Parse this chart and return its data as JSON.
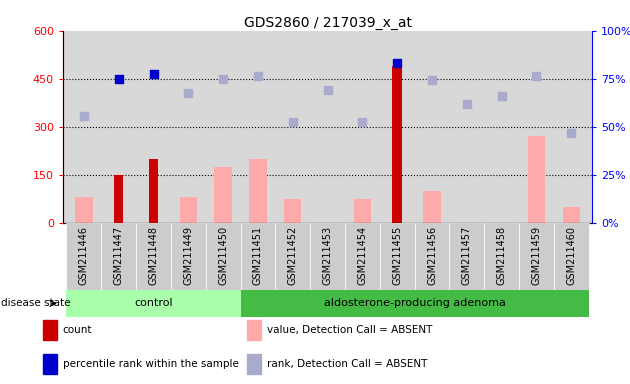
{
  "title": "GDS2860 / 217039_x_at",
  "samples": [
    "GSM211446",
    "GSM211447",
    "GSM211448",
    "GSM211449",
    "GSM211450",
    "GSM211451",
    "GSM211452",
    "GSM211453",
    "GSM211454",
    "GSM211455",
    "GSM211456",
    "GSM211457",
    "GSM211458",
    "GSM211459",
    "GSM211460"
  ],
  "n_control": 5,
  "n_adenoma": 10,
  "count": [
    null,
    150,
    200,
    null,
    null,
    null,
    null,
    null,
    null,
    490,
    null,
    null,
    null,
    null,
    null
  ],
  "percentile_rank_left": [
    null,
    450,
    465,
    null,
    null,
    null,
    null,
    null,
    null,
    500,
    null,
    null,
    null,
    null,
    null
  ],
  "value_absent": [
    80,
    null,
    null,
    80,
    175,
    200,
    75,
    null,
    75,
    null,
    100,
    null,
    null,
    270,
    50
  ],
  "rank_absent_left": [
    335,
    null,
    null,
    405,
    450,
    460,
    315,
    415,
    315,
    null,
    445,
    370,
    395,
    460,
    280
  ],
  "ylim_left": [
    0,
    600
  ],
  "ylim_right": [
    0,
    100
  ],
  "yticks_left": [
    0,
    150,
    300,
    450,
    600
  ],
  "yticks_right": [
    0,
    25,
    50,
    75,
    100
  ],
  "hlines": [
    150,
    300,
    450
  ],
  "bar_width": 0.5,
  "color_count": "#cc0000",
  "color_percentile": "#0000cc",
  "color_value_absent": "#ffaaaa",
  "color_rank_absent": "#aaaacc",
  "color_control_bg": "#aaffaa",
  "color_adenoma_bg": "#44bb44",
  "color_plot_bg": "#d8d8d8",
  "group_label_control": "control",
  "group_label_adenoma": "aldosterone-producing adenoma",
  "disease_state_label": "disease state",
  "legend_items": [
    "count",
    "percentile rank within the sample",
    "value, Detection Call = ABSENT",
    "rank, Detection Call = ABSENT"
  ],
  "legend_colors": [
    "#cc0000",
    "#0000cc",
    "#ffaaaa",
    "#aaaacc"
  ]
}
